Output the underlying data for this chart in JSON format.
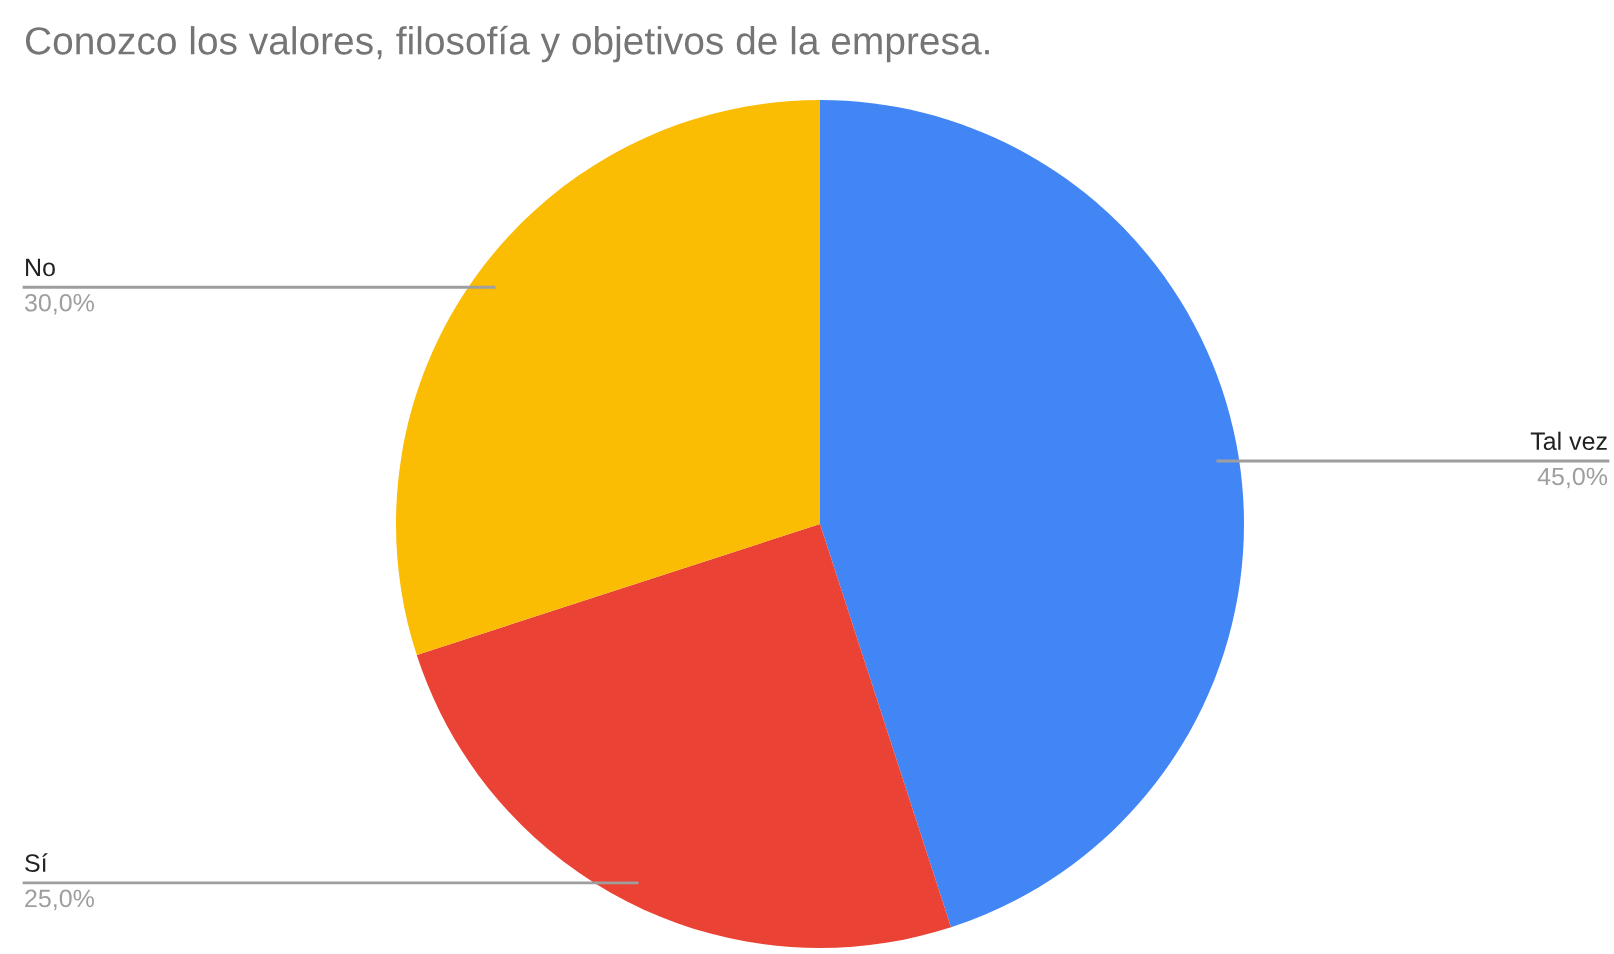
{
  "chart_data": {
    "type": "pie",
    "title": "Conozco los valores, filosofía y objetivos de la empresa.",
    "categories": [
      "Tal vez",
      "Sí",
      "No"
    ],
    "values": [
      45,
      25,
      30
    ],
    "value_labels": [
      "45,0%",
      "25,0%",
      "30,0%"
    ],
    "colors": [
      "#4285f4",
      "#ea4335",
      "#fbbc04"
    ]
  }
}
